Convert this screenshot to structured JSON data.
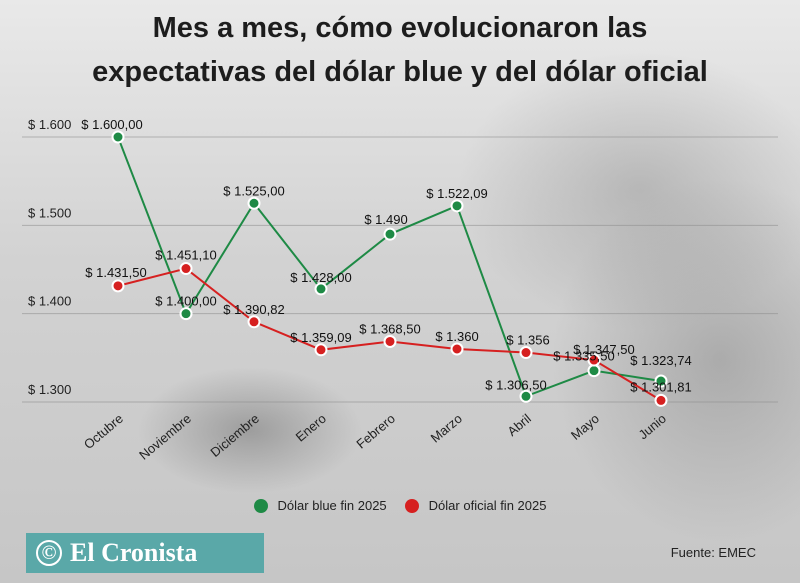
{
  "title_line1": "Mes a mes, cómo evolucionaron las",
  "title_line2": "expectativas del dólar blue y del dólar oficial",
  "source": "Fuente: EMEC",
  "logo_text": "El Cronista",
  "logo_mark": "©",
  "chart_data": {
    "type": "line",
    "title": "Mes a mes, cómo evolucionaron las expectativas del dólar blue y del dólar oficial",
    "categories": [
      "Octubre",
      "Noviembre",
      "Diciembre",
      "Enero",
      "Febrero",
      "Marzo",
      "Abril",
      "Mayo",
      "Junio"
    ],
    "ylim": [
      1300,
      1600
    ],
    "yticks": [
      1300,
      1400,
      1500,
      1600
    ],
    "ytick_labels": [
      "$ 1.300",
      "$ 1.400",
      "$ 1.500",
      "$ 1.600"
    ],
    "grid": true,
    "legend_position": "bottom",
    "series": [
      {
        "name": "Dólar blue fin 2025",
        "color": "#1e8a45",
        "values": [
          1600.0,
          1400.0,
          1525.0,
          1428.0,
          1490,
          1522.09,
          1306.5,
          1335.5,
          1323.74
        ],
        "labels": [
          "$ 1.600,00",
          "$ 1.400,00",
          "$ 1.525,00",
          "$ 1.428,00",
          "$ 1.490",
          "$ 1.522,09",
          "$ 1.306,50",
          "$ 1.335,50",
          "$ 1.323,74"
        ]
      },
      {
        "name": "Dólar oficial fin 2025",
        "color": "#d62020",
        "values": [
          1431.5,
          1451.1,
          1390.82,
          1359.09,
          1368.5,
          1360,
          1356,
          1347.5,
          1301.81
        ],
        "labels": [
          "$ 1.431,50",
          "$ 1.451,10",
          "$ 1.390,82",
          "$ 1.359,09",
          "$ 1.368,50",
          "$ 1.360",
          "$ 1.356",
          "$ 1.347,50",
          "$ 1.301,81"
        ]
      }
    ]
  }
}
